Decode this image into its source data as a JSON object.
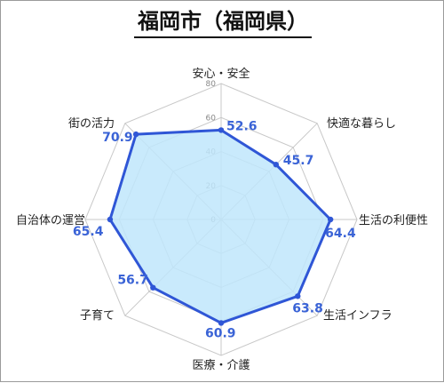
{
  "title": "福岡市（福岡県）",
  "chart_data": {
    "type": "radar",
    "title": "福岡市（福岡県）",
    "categories": [
      "安心・安全",
      "快適な暮らし",
      "生活の利便性",
      "生活インフラ",
      "医療・介護",
      "子育て",
      "自治体の運営",
      "街の活力"
    ],
    "values": [
      52.6,
      45.7,
      64.4,
      63.8,
      60.9,
      56.7,
      65.4,
      70.9
    ],
    "ticks": [
      0,
      20,
      40,
      60,
      80
    ],
    "range": [
      0,
      80
    ],
    "grid": true,
    "colors": {
      "fill": "#bfe6fb",
      "line": "#2f56d6",
      "grid": "#c8c8c8",
      "value_text": "#3a63d6"
    }
  }
}
